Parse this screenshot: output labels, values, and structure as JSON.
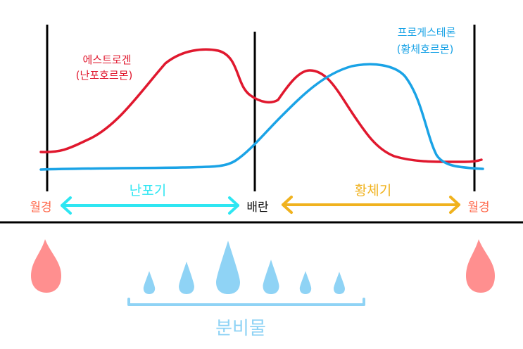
{
  "hormones": {
    "estrogen": {
      "name": "에스트로겐",
      "sub": "(난포호르몬)",
      "color": "#e0182e"
    },
    "progesterone": {
      "name": "프로게스테론",
      "sub": "(황체호르몬)",
      "color": "#1aa3e6"
    }
  },
  "markers": {
    "menstruation_left": {
      "label": "월경",
      "color": "#ff6a4d"
    },
    "ovulation": {
      "label": "배란",
      "color": "#111111"
    },
    "menstruation_right": {
      "label": "월경",
      "color": "#ff6a4d"
    }
  },
  "phases": {
    "follicular": {
      "label": "난포기",
      "color": "#2ee6f2"
    },
    "luteal": {
      "label": "황체기",
      "color": "#f0b21e"
    }
  },
  "discharge": {
    "label": "분비물",
    "drop_color": "#8fd3f5",
    "menstrual_drop_color": "#ff8f8f",
    "bracket_color": "#8fd3f5",
    "relative_amounts": [
      0.2,
      0.45,
      1.0,
      0.5,
      0.2,
      0.18
    ]
  }
}
